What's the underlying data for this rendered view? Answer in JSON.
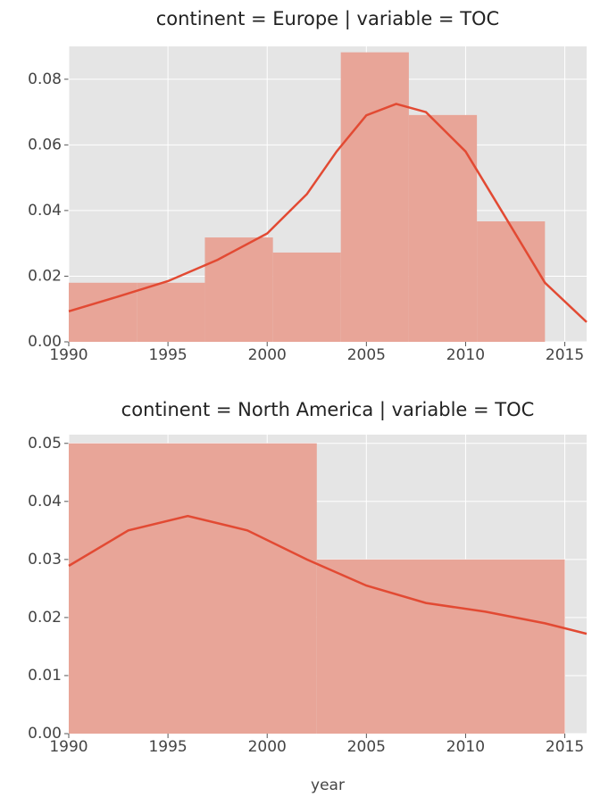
{
  "chart_data": [
    {
      "type": "histogram",
      "title": "continent = Europe | variable = TOC",
      "bins": [
        1990,
        1993.43,
        1996.86,
        2000.29,
        2003.71,
        2007.14,
        2010.57,
        2014
      ],
      "values": [
        0.018,
        0.018,
        0.0318,
        0.0272,
        0.0882,
        0.0691,
        0.0367
      ],
      "color": "#e8a598",
      "line": {
        "color": "#e24a33",
        "x": [
          1990,
          1992.5,
          1995,
          1997.5,
          2000,
          2002,
          2003.5,
          2005,
          2006.5,
          2008,
          2010,
          2012,
          2014,
          2016.1
        ],
        "values": [
          0.0093,
          0.0138,
          0.0185,
          0.025,
          0.033,
          0.045,
          0.058,
          0.069,
          0.0725,
          0.07,
          0.058,
          0.038,
          0.018,
          0.006
        ]
      },
      "xlim": [
        1990,
        2016.1
      ],
      "xticks": [
        1990,
        1995,
        2000,
        2005,
        2010,
        2015
      ],
      "ylim": [
        0,
        0.09
      ],
      "yticks": [
        {
          "value": 0,
          "label": "0.00"
        },
        0.02,
        0.04,
        0.06,
        0.08
      ],
      "grid": true
    },
    {
      "type": "histogram",
      "title": "continent = North America | variable = TOC",
      "bins": [
        1990,
        2002.5,
        2015
      ],
      "values": [
        0.05,
        0.03
      ],
      "color": "#e8a598",
      "line": {
        "color": "#e24a33",
        "x": [
          1990,
          1993,
          1996,
          1999,
          2002,
          2005,
          2008,
          2011,
          2014,
          2016.1
        ],
        "values": [
          0.0289,
          0.035,
          0.0375,
          0.035,
          0.03,
          0.0255,
          0.0225,
          0.021,
          0.019,
          0.0172
        ]
      },
      "xlim": [
        1990,
        2016.1
      ],
      "xticks": [
        1990,
        1995,
        2000,
        2005,
        2010,
        2015
      ],
      "ylim": [
        0,
        0.0515
      ],
      "yticks": [
        {
          "value": 0,
          "label": "0.00"
        },
        0.01,
        0.02,
        0.03,
        0.04,
        0.05
      ],
      "xlabel": "year",
      "grid": true
    }
  ]
}
